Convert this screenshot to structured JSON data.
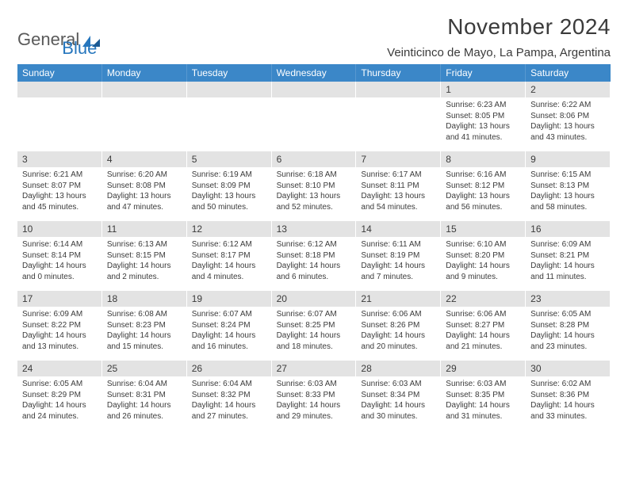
{
  "logo": {
    "word1": "General",
    "word2": "Blue"
  },
  "title": "November 2024",
  "location": "Veinticinco de Mayo, La Pampa, Argentina",
  "colors": {
    "header_bg": "#3b87c8",
    "header_text": "#ffffff",
    "daynum_bg": "#e3e3e3",
    "text": "#3b3b3b",
    "page_bg": "#ffffff",
    "logo_gray": "#5a5a5a",
    "logo_blue": "#2676bd"
  },
  "typography": {
    "title_fontsize": 28,
    "location_fontsize": 15,
    "weekday_fontsize": 12,
    "daynum_fontsize": 12,
    "body_fontsize": 10
  },
  "weekdays": [
    "Sunday",
    "Monday",
    "Tuesday",
    "Wednesday",
    "Thursday",
    "Friday",
    "Saturday"
  ],
  "weeks": [
    [
      {
        "empty": true
      },
      {
        "empty": true
      },
      {
        "empty": true
      },
      {
        "empty": true
      },
      {
        "empty": true
      },
      {
        "num": "1",
        "sunrise": "Sunrise: 6:23 AM",
        "sunset": "Sunset: 8:05 PM",
        "daylight": "Daylight: 13 hours and 41 minutes."
      },
      {
        "num": "2",
        "sunrise": "Sunrise: 6:22 AM",
        "sunset": "Sunset: 8:06 PM",
        "daylight": "Daylight: 13 hours and 43 minutes."
      }
    ],
    [
      {
        "num": "3",
        "sunrise": "Sunrise: 6:21 AM",
        "sunset": "Sunset: 8:07 PM",
        "daylight": "Daylight: 13 hours and 45 minutes."
      },
      {
        "num": "4",
        "sunrise": "Sunrise: 6:20 AM",
        "sunset": "Sunset: 8:08 PM",
        "daylight": "Daylight: 13 hours and 47 minutes."
      },
      {
        "num": "5",
        "sunrise": "Sunrise: 6:19 AM",
        "sunset": "Sunset: 8:09 PM",
        "daylight": "Daylight: 13 hours and 50 minutes."
      },
      {
        "num": "6",
        "sunrise": "Sunrise: 6:18 AM",
        "sunset": "Sunset: 8:10 PM",
        "daylight": "Daylight: 13 hours and 52 minutes."
      },
      {
        "num": "7",
        "sunrise": "Sunrise: 6:17 AM",
        "sunset": "Sunset: 8:11 PM",
        "daylight": "Daylight: 13 hours and 54 minutes."
      },
      {
        "num": "8",
        "sunrise": "Sunrise: 6:16 AM",
        "sunset": "Sunset: 8:12 PM",
        "daylight": "Daylight: 13 hours and 56 minutes."
      },
      {
        "num": "9",
        "sunrise": "Sunrise: 6:15 AM",
        "sunset": "Sunset: 8:13 PM",
        "daylight": "Daylight: 13 hours and 58 minutes."
      }
    ],
    [
      {
        "num": "10",
        "sunrise": "Sunrise: 6:14 AM",
        "sunset": "Sunset: 8:14 PM",
        "daylight": "Daylight: 14 hours and 0 minutes."
      },
      {
        "num": "11",
        "sunrise": "Sunrise: 6:13 AM",
        "sunset": "Sunset: 8:15 PM",
        "daylight": "Daylight: 14 hours and 2 minutes."
      },
      {
        "num": "12",
        "sunrise": "Sunrise: 6:12 AM",
        "sunset": "Sunset: 8:17 PM",
        "daylight": "Daylight: 14 hours and 4 minutes."
      },
      {
        "num": "13",
        "sunrise": "Sunrise: 6:12 AM",
        "sunset": "Sunset: 8:18 PM",
        "daylight": "Daylight: 14 hours and 6 minutes."
      },
      {
        "num": "14",
        "sunrise": "Sunrise: 6:11 AM",
        "sunset": "Sunset: 8:19 PM",
        "daylight": "Daylight: 14 hours and 7 minutes."
      },
      {
        "num": "15",
        "sunrise": "Sunrise: 6:10 AM",
        "sunset": "Sunset: 8:20 PM",
        "daylight": "Daylight: 14 hours and 9 minutes."
      },
      {
        "num": "16",
        "sunrise": "Sunrise: 6:09 AM",
        "sunset": "Sunset: 8:21 PM",
        "daylight": "Daylight: 14 hours and 11 minutes."
      }
    ],
    [
      {
        "num": "17",
        "sunrise": "Sunrise: 6:09 AM",
        "sunset": "Sunset: 8:22 PM",
        "daylight": "Daylight: 14 hours and 13 minutes."
      },
      {
        "num": "18",
        "sunrise": "Sunrise: 6:08 AM",
        "sunset": "Sunset: 8:23 PM",
        "daylight": "Daylight: 14 hours and 15 minutes."
      },
      {
        "num": "19",
        "sunrise": "Sunrise: 6:07 AM",
        "sunset": "Sunset: 8:24 PM",
        "daylight": "Daylight: 14 hours and 16 minutes."
      },
      {
        "num": "20",
        "sunrise": "Sunrise: 6:07 AM",
        "sunset": "Sunset: 8:25 PM",
        "daylight": "Daylight: 14 hours and 18 minutes."
      },
      {
        "num": "21",
        "sunrise": "Sunrise: 6:06 AM",
        "sunset": "Sunset: 8:26 PM",
        "daylight": "Daylight: 14 hours and 20 minutes."
      },
      {
        "num": "22",
        "sunrise": "Sunrise: 6:06 AM",
        "sunset": "Sunset: 8:27 PM",
        "daylight": "Daylight: 14 hours and 21 minutes."
      },
      {
        "num": "23",
        "sunrise": "Sunrise: 6:05 AM",
        "sunset": "Sunset: 8:28 PM",
        "daylight": "Daylight: 14 hours and 23 minutes."
      }
    ],
    [
      {
        "num": "24",
        "sunrise": "Sunrise: 6:05 AM",
        "sunset": "Sunset: 8:29 PM",
        "daylight": "Daylight: 14 hours and 24 minutes."
      },
      {
        "num": "25",
        "sunrise": "Sunrise: 6:04 AM",
        "sunset": "Sunset: 8:31 PM",
        "daylight": "Daylight: 14 hours and 26 minutes."
      },
      {
        "num": "26",
        "sunrise": "Sunrise: 6:04 AM",
        "sunset": "Sunset: 8:32 PM",
        "daylight": "Daylight: 14 hours and 27 minutes."
      },
      {
        "num": "27",
        "sunrise": "Sunrise: 6:03 AM",
        "sunset": "Sunset: 8:33 PM",
        "daylight": "Daylight: 14 hours and 29 minutes."
      },
      {
        "num": "28",
        "sunrise": "Sunrise: 6:03 AM",
        "sunset": "Sunset: 8:34 PM",
        "daylight": "Daylight: 14 hours and 30 minutes."
      },
      {
        "num": "29",
        "sunrise": "Sunrise: 6:03 AM",
        "sunset": "Sunset: 8:35 PM",
        "daylight": "Daylight: 14 hours and 31 minutes."
      },
      {
        "num": "30",
        "sunrise": "Sunrise: 6:02 AM",
        "sunset": "Sunset: 8:36 PM",
        "daylight": "Daylight: 14 hours and 33 minutes."
      }
    ]
  ]
}
